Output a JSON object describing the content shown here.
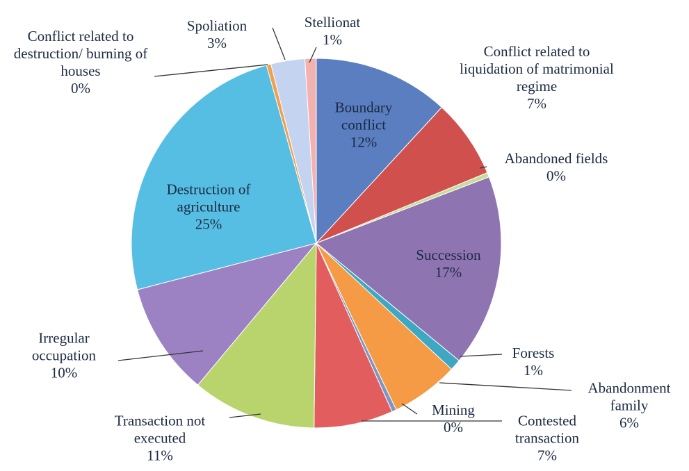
{
  "chart_data": {
    "type": "pie",
    "categories": [
      "Boundary conflict",
      "Conflict related to liquidation of matrimonial regime",
      "Abandoned fields",
      "Succession",
      "Forests",
      "Abandonment family",
      "Mining",
      "Contested transaction",
      "Transaction not executed",
      "Irregular occupation",
      "Destruction of agriculture",
      "Conflict related to destruction/ burning of houses",
      "Spoliation",
      "Stellionat"
    ],
    "values": [
      12,
      7,
      0.4,
      17,
      1,
      6,
      0.4,
      7,
      11,
      10,
      25,
      0.4,
      3,
      1
    ],
    "value_labels": [
      "12%",
      "7%",
      "0%",
      "17%",
      "1%",
      "6%",
      "0%",
      "7%",
      "11%",
      "10%",
      "25%",
      "0%",
      "3%",
      "1%"
    ],
    "colors": [
      "#5a7ec0",
      "#d0504d",
      "#c8dc9c",
      "#8f74b2",
      "#3ea8c2",
      "#f59a45",
      "#7b96c6",
      "#e25e5e",
      "#b9d46c",
      "#9c82c2",
      "#56bee2",
      "#f0a050",
      "#c4d3ef",
      "#f2b2b0"
    ]
  }
}
